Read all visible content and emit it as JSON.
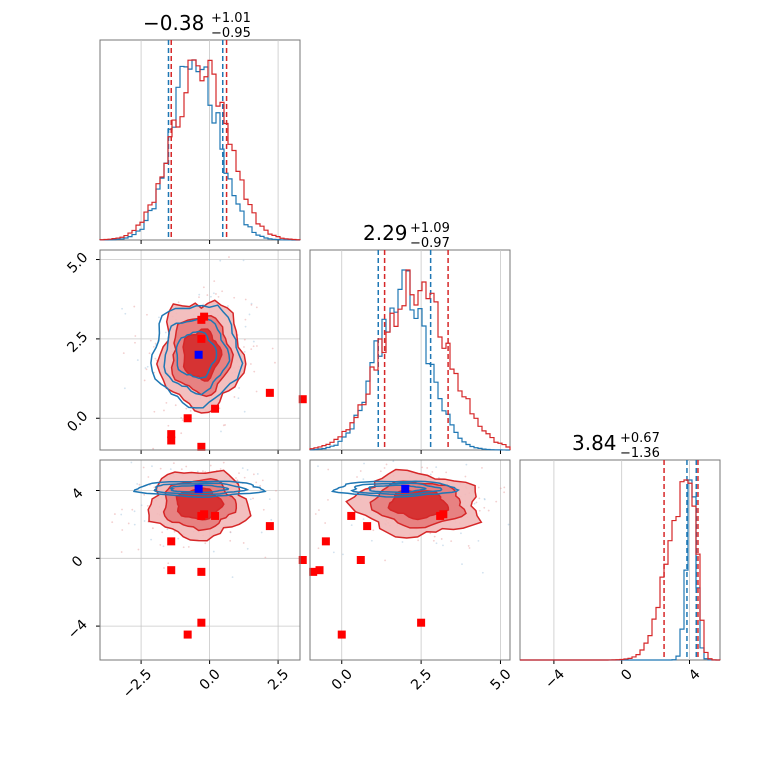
{
  "colors": {
    "blue": "#1f77b4",
    "red": "#d62728",
    "marker_blue": "#0000ff",
    "marker_red": "#ff0000",
    "grid": "#c8c8c8",
    "frame": "#777777"
  },
  "chart_data": {
    "type": "corner",
    "parameters": [
      {
        "title_main": "−0.38",
        "title_plus": "+1.01",
        "title_minus": "−0.95",
        "range": [
          -4.0,
          3.3
        ]
      },
      {
        "title_main": "2.29",
        "title_plus": "+1.09",
        "title_minus": "−0.97",
        "range": [
          -1.0,
          5.3
        ]
      },
      {
        "title_main": "3.84",
        "title_plus": "+0.67",
        "title_minus": "−1.36",
        "range": [
          -6.0,
          5.8
        ]
      }
    ],
    "x_ticks": [
      {
        "values": [
          -2.5,
          0.0,
          2.5
        ],
        "labels": [
          "−2.5",
          "0.0",
          "2.5"
        ]
      },
      {
        "values": [
          0.0,
          2.5,
          5.0
        ],
        "labels": [
          "0.0",
          "2.5",
          "5.0"
        ]
      },
      {
        "values": [
          -4,
          0,
          4
        ],
        "labels": [
          "−4",
          "0",
          "4"
        ]
      }
    ],
    "y_ticks": [
      {
        "values": [
          0.0,
          2.5,
          5.0
        ],
        "labels": [
          "0.0",
          "2.5",
          "5.0"
        ]
      },
      {
        "values": [
          -4,
          0,
          4
        ],
        "labels": [
          "−4",
          "0",
          "4"
        ]
      }
    ],
    "quantile_lines": {
      "blue": [
        [
          -1.5,
          0.48
        ],
        [
          1.15,
          2.8
        ],
        [
          3.85,
          4.4
        ]
      ],
      "red": [
        [
          -1.4,
          0.62
        ],
        [
          1.35,
          3.35
        ],
        [
          2.5,
          4.5
        ]
      ]
    },
    "truth_point": {
      "color": "blue",
      "values": [
        -0.4,
        2.0,
        4.1
      ]
    },
    "injection_points": [
      [
        -1.4,
        -0.5,
        1.0
      ],
      [
        -1.4,
        -0.7,
        -0.7
      ],
      [
        -0.3,
        -0.9,
        -0.8
      ],
      [
        -0.3,
        3.1,
        2.5
      ],
      [
        0.2,
        0.3,
        2.5
      ],
      [
        2.2,
        0.8,
        1.9
      ],
      [
        -0.3,
        2.5,
        -3.8
      ],
      [
        -0.8,
        0.0,
        -4.5
      ],
      [
        -0.2,
        3.2,
        2.6
      ],
      [
        3.4,
        0.6,
        -0.1
      ]
    ],
    "grid": true
  }
}
